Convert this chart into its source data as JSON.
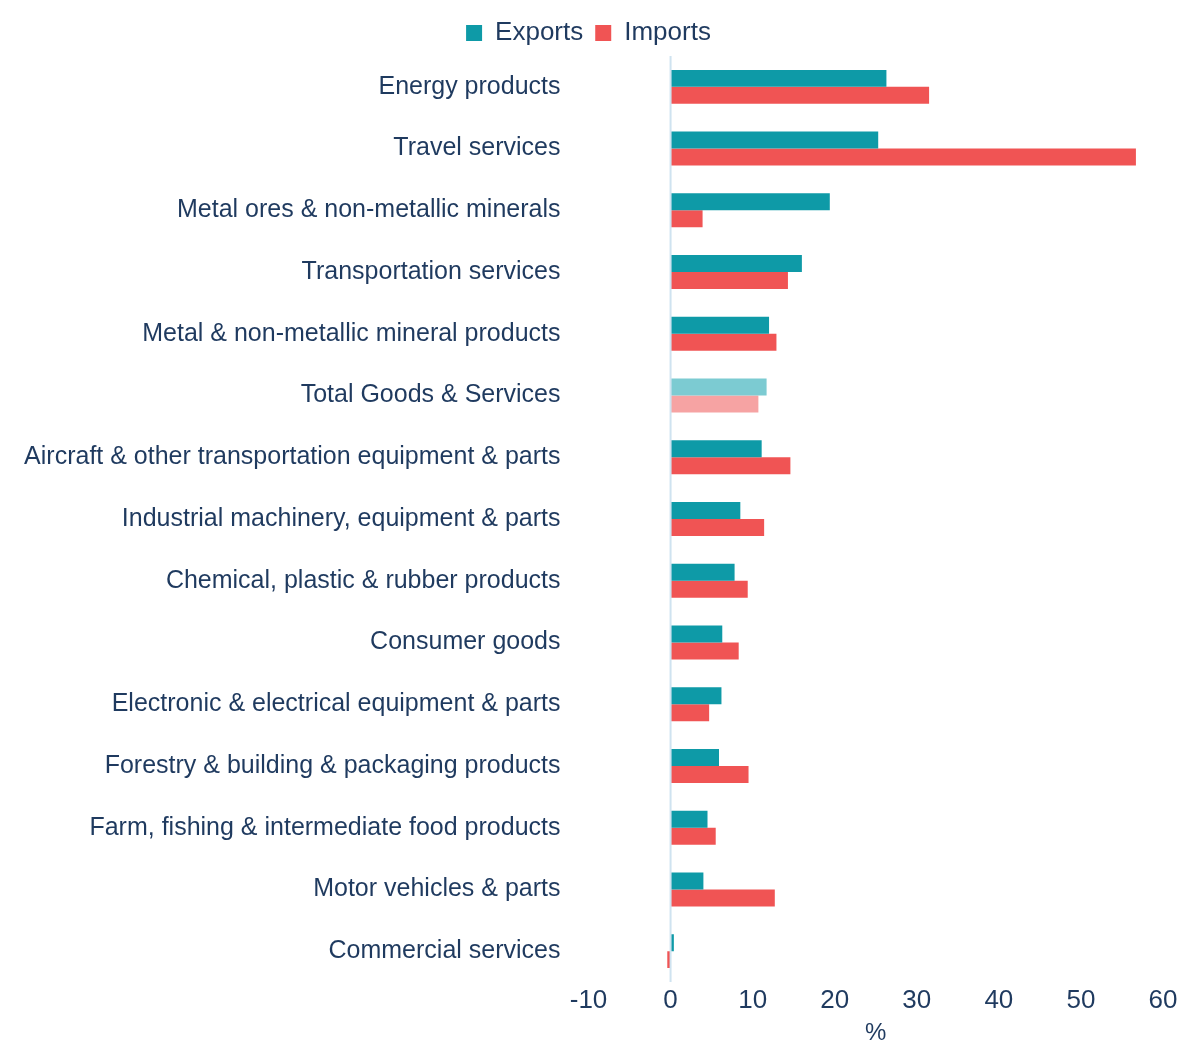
{
  "chart_data": {
    "type": "bar",
    "orientation": "horizontal",
    "xlabel": "%",
    "legend": "top",
    "categories": [
      "Energy products",
      "Travel services",
      "Metal ores & non-metallic minerals",
      "Transportation services",
      "Metal & non-metallic mineral products",
      "Total Goods & Services",
      "Aircraft & other transportation equipment & parts",
      "Industrial machinery, equipment & parts",
      "Chemical, plastic & rubber products",
      "Consumer goods",
      "Electronic & electrical equipment & parts",
      "Forestry & building & packaging products",
      "Farm, fishing & intermediate food products",
      "Motor vehicles & parts",
      "Commercial services"
    ],
    "series": [
      {
        "name": "Exports",
        "color": "#0e9aa7",
        "colors": [
          "#0e9aa7",
          "#0e9aa7",
          "#0e9aa7",
          "#0e9aa7",
          "#0e9aa7",
          "#7ccbd2",
          "#0e9aa7",
          "#0e9aa7",
          "#0e9aa7",
          "#0e9aa7",
          "#0e9aa7",
          "#0e9aa7",
          "#0e9aa7",
          "#0e9aa7",
          "#0e9aa7"
        ],
        "values": [
          26.3,
          25.3,
          19.4,
          16.0,
          12.0,
          11.7,
          11.1,
          8.5,
          7.8,
          6.3,
          6.2,
          5.9,
          4.5,
          4.0,
          0.4
        ]
      },
      {
        "name": "Imports",
        "color": "#f05454",
        "colors": [
          "#f05454",
          "#f05454",
          "#f05454",
          "#f05454",
          "#f05454",
          "#f6a3a3",
          "#f05454",
          "#f05454",
          "#f05454",
          "#f05454",
          "#f05454",
          "#f05454",
          "#f05454",
          "#f05454",
          "#f05454"
        ],
        "values": [
          31.5,
          56.7,
          3.9,
          14.3,
          12.9,
          10.7,
          14.6,
          11.4,
          9.4,
          8.3,
          4.7,
          9.5,
          5.5,
          12.7,
          -0.4
        ]
      }
    ],
    "xlim": [
      -10,
      60
    ],
    "xticks": [
      -10,
      0,
      10,
      20,
      30,
      40,
      50,
      60
    ],
    "ref_lines": [
      {
        "axis": "x",
        "value": 0,
        "color": "#cfe3f0"
      }
    ],
    "grid": false
  }
}
